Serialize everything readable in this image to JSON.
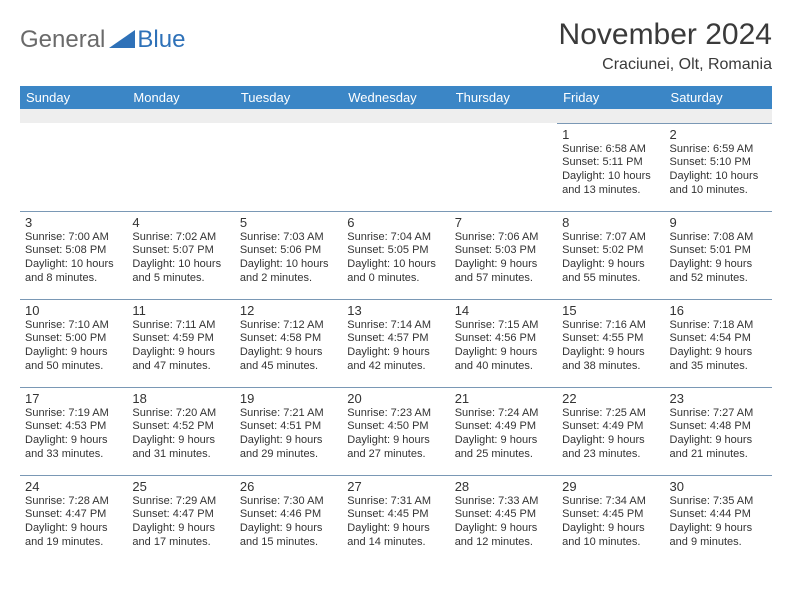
{
  "logo": {
    "part1": "General",
    "part2": "Blue"
  },
  "header": {
    "title": "November 2024",
    "location": "Craciunei, Olt, Romania"
  },
  "colors": {
    "header_bg": "#3b86c6",
    "header_fg": "#ffffff",
    "rule": "#7a98b5",
    "logo_gray": "#6a6a6a",
    "logo_blue": "#2e71b8",
    "text": "#333333"
  },
  "weekdays": [
    "Sunday",
    "Monday",
    "Tuesday",
    "Wednesday",
    "Thursday",
    "Friday",
    "Saturday"
  ],
  "layout": {
    "first_weekday_index": 5,
    "days_in_month": 30
  },
  "days": {
    "1": {
      "sunrise": "6:58 AM",
      "sunset": "5:11 PM",
      "daylight": "10 hours and 13 minutes."
    },
    "2": {
      "sunrise": "6:59 AM",
      "sunset": "5:10 PM",
      "daylight": "10 hours and 10 minutes."
    },
    "3": {
      "sunrise": "7:00 AM",
      "sunset": "5:08 PM",
      "daylight": "10 hours and 8 minutes."
    },
    "4": {
      "sunrise": "7:02 AM",
      "sunset": "5:07 PM",
      "daylight": "10 hours and 5 minutes."
    },
    "5": {
      "sunrise": "7:03 AM",
      "sunset": "5:06 PM",
      "daylight": "10 hours and 2 minutes."
    },
    "6": {
      "sunrise": "7:04 AM",
      "sunset": "5:05 PM",
      "daylight": "10 hours and 0 minutes."
    },
    "7": {
      "sunrise": "7:06 AM",
      "sunset": "5:03 PM",
      "daylight": "9 hours and 57 minutes."
    },
    "8": {
      "sunrise": "7:07 AM",
      "sunset": "5:02 PM",
      "daylight": "9 hours and 55 minutes."
    },
    "9": {
      "sunrise": "7:08 AM",
      "sunset": "5:01 PM",
      "daylight": "9 hours and 52 minutes."
    },
    "10": {
      "sunrise": "7:10 AM",
      "sunset": "5:00 PM",
      "daylight": "9 hours and 50 minutes."
    },
    "11": {
      "sunrise": "7:11 AM",
      "sunset": "4:59 PM",
      "daylight": "9 hours and 47 minutes."
    },
    "12": {
      "sunrise": "7:12 AM",
      "sunset": "4:58 PM",
      "daylight": "9 hours and 45 minutes."
    },
    "13": {
      "sunrise": "7:14 AM",
      "sunset": "4:57 PM",
      "daylight": "9 hours and 42 minutes."
    },
    "14": {
      "sunrise": "7:15 AM",
      "sunset": "4:56 PM",
      "daylight": "9 hours and 40 minutes."
    },
    "15": {
      "sunrise": "7:16 AM",
      "sunset": "4:55 PM",
      "daylight": "9 hours and 38 minutes."
    },
    "16": {
      "sunrise": "7:18 AM",
      "sunset": "4:54 PM",
      "daylight": "9 hours and 35 minutes."
    },
    "17": {
      "sunrise": "7:19 AM",
      "sunset": "4:53 PM",
      "daylight": "9 hours and 33 minutes."
    },
    "18": {
      "sunrise": "7:20 AM",
      "sunset": "4:52 PM",
      "daylight": "9 hours and 31 minutes."
    },
    "19": {
      "sunrise": "7:21 AM",
      "sunset": "4:51 PM",
      "daylight": "9 hours and 29 minutes."
    },
    "20": {
      "sunrise": "7:23 AM",
      "sunset": "4:50 PM",
      "daylight": "9 hours and 27 minutes."
    },
    "21": {
      "sunrise": "7:24 AM",
      "sunset": "4:49 PM",
      "daylight": "9 hours and 25 minutes."
    },
    "22": {
      "sunrise": "7:25 AM",
      "sunset": "4:49 PM",
      "daylight": "9 hours and 23 minutes."
    },
    "23": {
      "sunrise": "7:27 AM",
      "sunset": "4:48 PM",
      "daylight": "9 hours and 21 minutes."
    },
    "24": {
      "sunrise": "7:28 AM",
      "sunset": "4:47 PM",
      "daylight": "9 hours and 19 minutes."
    },
    "25": {
      "sunrise": "7:29 AM",
      "sunset": "4:47 PM",
      "daylight": "9 hours and 17 minutes."
    },
    "26": {
      "sunrise": "7:30 AM",
      "sunset": "4:46 PM",
      "daylight": "9 hours and 15 minutes."
    },
    "27": {
      "sunrise": "7:31 AM",
      "sunset": "4:45 PM",
      "daylight": "9 hours and 14 minutes."
    },
    "28": {
      "sunrise": "7:33 AM",
      "sunset": "4:45 PM",
      "daylight": "9 hours and 12 minutes."
    },
    "29": {
      "sunrise": "7:34 AM",
      "sunset": "4:45 PM",
      "daylight": "9 hours and 10 minutes."
    },
    "30": {
      "sunrise": "7:35 AM",
      "sunset": "4:44 PM",
      "daylight": "9 hours and 9 minutes."
    }
  },
  "labels": {
    "sunrise": "Sunrise:",
    "sunset": "Sunset:",
    "daylight": "Daylight:"
  }
}
